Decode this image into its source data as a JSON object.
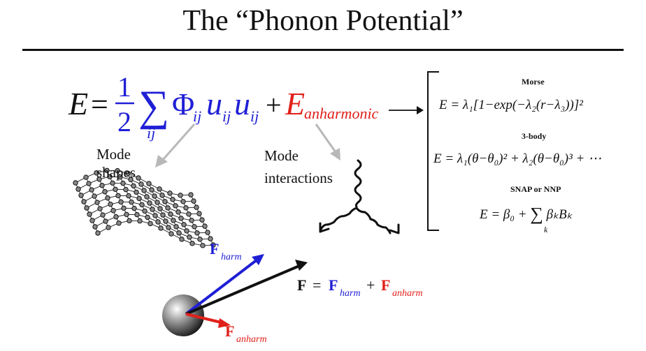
{
  "title": "The “Phonon Potential”",
  "main_equation": {
    "lhs": "E",
    "equals": "=",
    "frac_num": "1",
    "frac_den": "2",
    "sum_sub": "ij",
    "phi": "Φ",
    "phi_sub": "ij",
    "u1": "u",
    "u1_sub": "ij",
    "u2": "u",
    "u2_sub": "ij",
    "plus": "+",
    "anh_E": "E",
    "anh_sub": "anharmonic"
  },
  "labels": {
    "mode_shapes_line1": "Mode",
    "mode_shapes_line2": "shapes",
    "mode_inter_line1": "Mode",
    "mode_inter_line2": "interactions"
  },
  "potentials": {
    "morse_title": "Morse",
    "morse_eq": "E = λ₁[1−exp(−λ₂(r−λ₃))]²",
    "threebody_title": "3-body",
    "threebody_eq": "E = λ₁(θ−θ₀)² + λ₂(θ−θ₀)³ + ⋯",
    "snap_title": "SNAP or NNP",
    "snap_eq_lhs": "E = β₀ +",
    "snap_sum_sub": "k",
    "snap_eq_rhs": "βₖBₖ"
  },
  "forces": {
    "F": "F",
    "harm_sub": "harm",
    "anharm_sub": "anharm",
    "equals": "=",
    "plus": "+"
  },
  "colors": {
    "harmonic": "#1f1fd6",
    "anharmonic": "#e0201a",
    "ink": "#111111"
  }
}
